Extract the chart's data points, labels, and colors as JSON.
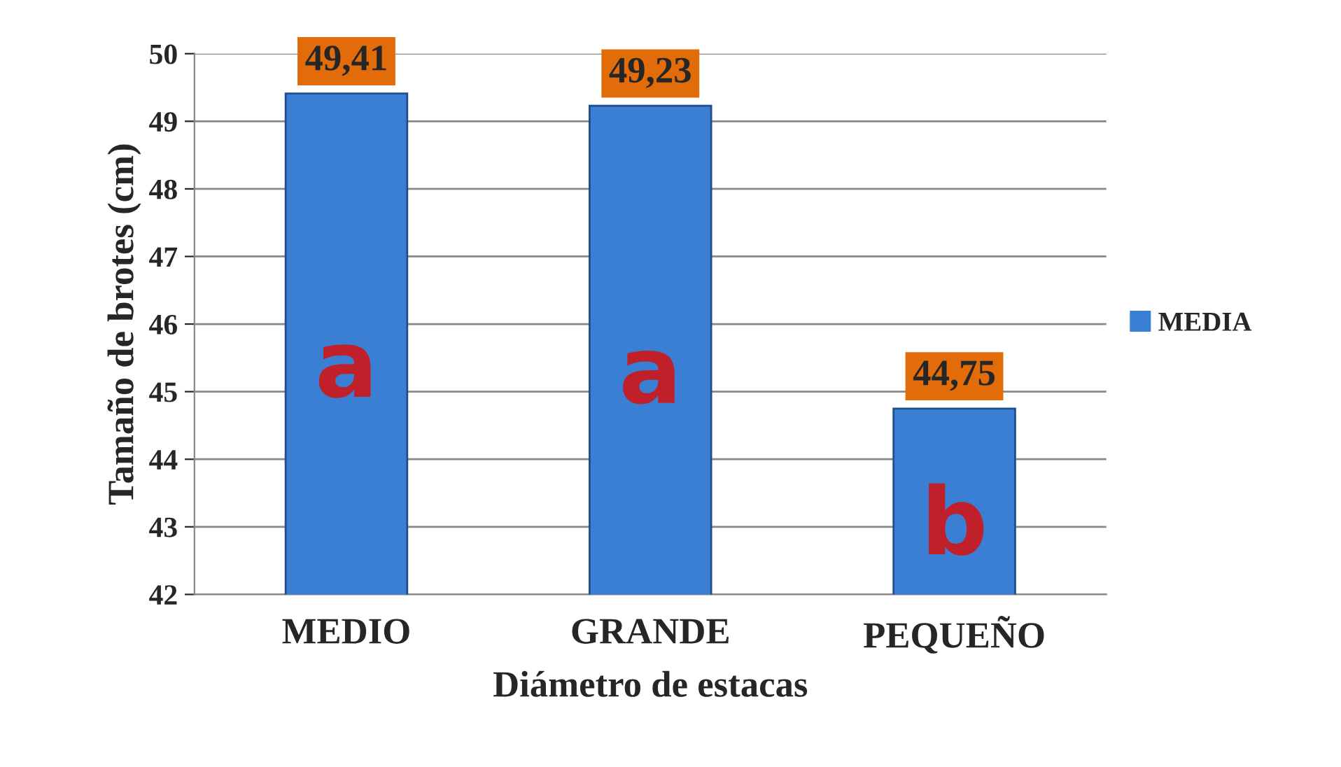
{
  "chart_data": {
    "type": "bar",
    "xlabel": "Diámetro de estacas",
    "ylabel": "Tamaño de brotes (cm)",
    "categories": [
      "MEDIO",
      "GRANDE",
      "PEQUEÑO"
    ],
    "series": [
      {
        "name": "MEDIA",
        "color": "#3a7fd4",
        "values": [
          49.41,
          49.23,
          44.75
        ],
        "value_labels": [
          "49,41",
          "49,23",
          "44,75"
        ]
      }
    ],
    "ylim": [
      42,
      50
    ],
    "yticks": [
      42,
      43,
      44,
      45,
      46,
      47,
      48,
      49,
      50
    ],
    "grid": "y",
    "legend": "right",
    "annotations": [
      "a",
      "a",
      "b"
    ]
  }
}
